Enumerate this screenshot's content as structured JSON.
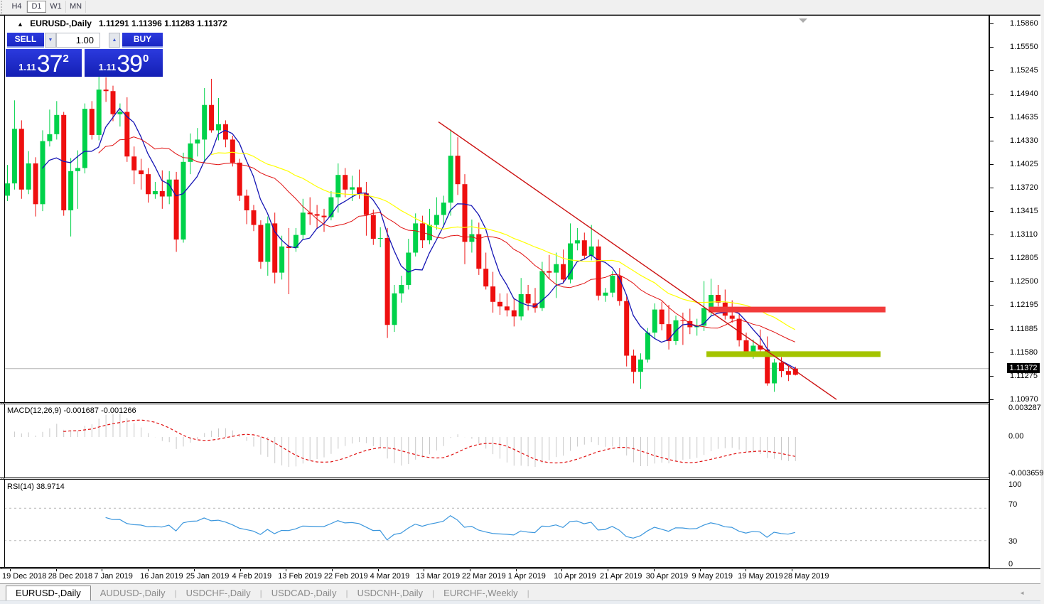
{
  "toolbar": {
    "timeframes": [
      {
        "label": "H4",
        "active": false
      },
      {
        "label": "D1",
        "active": true
      },
      {
        "label": "W1",
        "active": false
      },
      {
        "label": "MN",
        "active": false
      }
    ]
  },
  "chart_header": {
    "collapse_icon": "▲",
    "symbol_title": "EURUSD-,Daily",
    "ohlc_text": "1.11291 1.11396 1.11283 1.11372"
  },
  "trade_panel": {
    "sell_label": "SELL",
    "buy_label": "BUY",
    "volume": "1.00",
    "spin_down_icon": "▼",
    "spin_up_icon": "▲",
    "sell_price": {
      "small": "1.11",
      "big": "37",
      "sup": "2"
    },
    "buy_price": {
      "small": "1.11",
      "big": "39",
      "sup": "0"
    }
  },
  "price_axis": {
    "labels": [
      "1.15860",
      "1.15550",
      "1.15245",
      "1.14940",
      "1.14635",
      "1.14330",
      "1.14025",
      "1.13720",
      "1.13415",
      "1.13110",
      "1.12805",
      "1.12500",
      "1.12195",
      "1.11885",
      "1.11580",
      "1.11275",
      "1.10970"
    ],
    "current_price_tag": "1.11372"
  },
  "indicator_macd": {
    "label": "MACD(12,26,9) -0.001687 -0.001266",
    "value_main": "-0.001687",
    "value_signal": "-0.001266",
    "axis_labels": [
      "0.003287",
      "0.00",
      "-0.003659"
    ]
  },
  "indicator_rsi": {
    "label": "RSI(14) 38.9714",
    "value": "38.9714",
    "axis_labels": [
      "100",
      "70",
      "30",
      "0"
    ],
    "levels": [
      70,
      30
    ]
  },
  "time_axis": {
    "labels": [
      "19 Dec 2018",
      "28 Dec 2018",
      "7 Jan 2019",
      "16 Jan 2019",
      "25 Jan 2019",
      "4 Feb 2019",
      "13 Feb 2019",
      "22 Feb 2019",
      "4 Mar 2019",
      "13 Mar 2019",
      "22 Mar 2019",
      "1 Apr 2019",
      "10 Apr 2019",
      "21 Apr 2019",
      "30 Apr 2019",
      "9 May 2019",
      "19 May 2019",
      "28 May 2019"
    ]
  },
  "tabs": {
    "items": [
      {
        "label": "EURUSD-,Daily",
        "active": true
      },
      {
        "label": "AUDUSD-,Daily",
        "active": false
      },
      {
        "label": "USDCHF-,Daily",
        "active": false
      },
      {
        "label": "USDCAD-,Daily",
        "active": false
      },
      {
        "label": "USDCNH-,Daily",
        "active": false
      },
      {
        "label": "EURCHF-,Weekly",
        "active": false
      }
    ],
    "scroll_icon": "◄"
  },
  "colors": {
    "bull": "#00d24a",
    "bear": "#ee0f0f",
    "ma_fast": "#1414b4",
    "ma_mid": "#e01010",
    "ma_slow": "#ffff00",
    "macd_hist": "#c8c8c8",
    "macd_signal": "#e01010",
    "rsi_line": "#3a96dd",
    "resistance_band": "#f23b3b",
    "support_band": "#a4c400",
    "trendline": "#cc1111",
    "bid_line": "#b4b4b4"
  },
  "chart_data": {
    "type": "candlestick",
    "symbol": "EURUSD-",
    "timeframe": "Daily",
    "ylim": [
      1.1097,
      1.1586
    ],
    "x_tick_labels": [
      "19 Dec 2018",
      "28 Dec 2018",
      "7 Jan 2019",
      "16 Jan 2019",
      "25 Jan 2019",
      "4 Feb 2019",
      "13 Feb 2019",
      "22 Feb 2019",
      "4 Mar 2019",
      "13 Mar 2019",
      "22 Mar 2019",
      "1 Apr 2019",
      "10 Apr 2019",
      "21 Apr 2019",
      "30 Apr 2019",
      "9 May 2019",
      "19 May 2019",
      "28 May 2019"
    ],
    "moving_averages": [
      {
        "period": 6,
        "color_key": "ma_fast"
      },
      {
        "period": 14,
        "color_key": "ma_mid"
      },
      {
        "period": 30,
        "color_key": "ma_slow"
      }
    ],
    "bearish_override_indices": [
      112
    ],
    "ohlc": [
      [
        1.1362,
        1.1402,
        1.1355,
        1.1378
      ],
      [
        1.1378,
        1.1486,
        1.137,
        1.1449
      ],
      [
        1.1449,
        1.146,
        1.1358,
        1.137
      ],
      [
        1.137,
        1.142,
        1.1364,
        1.1404
      ],
      [
        1.1404,
        1.1412,
        1.1335,
        1.1351
      ],
      [
        1.1351,
        1.1447,
        1.1342,
        1.1433
      ],
      [
        1.1433,
        1.1474,
        1.1426,
        1.1442
      ],
      [
        1.1442,
        1.1485,
        1.1435,
        1.1467
      ],
      [
        1.1467,
        1.1471,
        1.1336,
        1.1343
      ],
      [
        1.1343,
        1.1411,
        1.1309,
        1.1394
      ],
      [
        1.1394,
        1.1421,
        1.1345,
        1.1398
      ],
      [
        1.1398,
        1.1482,
        1.1391,
        1.1475
      ],
      [
        1.1475,
        1.1485,
        1.1435,
        1.1441
      ],
      [
        1.1441,
        1.152,
        1.1434,
        1.15
      ],
      [
        1.15,
        1.1516,
        1.1484,
        1.1498
      ],
      [
        1.1498,
        1.1505,
        1.1459,
        1.1468
      ],
      [
        1.1468,
        1.1482,
        1.1452,
        1.1471
      ],
      [
        1.1471,
        1.149,
        1.1406,
        1.1413
      ],
      [
        1.1413,
        1.1426,
        1.1377,
        1.1395
      ],
      [
        1.1395,
        1.141,
        1.137,
        1.139
      ],
      [
        1.139,
        1.1398,
        1.1353,
        1.1364
      ],
      [
        1.1364,
        1.138,
        1.1358,
        1.1368
      ],
      [
        1.1368,
        1.1395,
        1.1345,
        1.1361
      ],
      [
        1.1361,
        1.1394,
        1.1351,
        1.1383
      ],
      [
        1.1383,
        1.1393,
        1.1289,
        1.1305
      ],
      [
        1.1305,
        1.1418,
        1.1301,
        1.1406
      ],
      [
        1.1406,
        1.1443,
        1.139,
        1.143
      ],
      [
        1.143,
        1.145,
        1.1413,
        1.1435
      ],
      [
        1.1435,
        1.1502,
        1.1405,
        1.148
      ],
      [
        1.148,
        1.1514,
        1.1444,
        1.1447
      ],
      [
        1.1447,
        1.1489,
        1.1434,
        1.1455
      ],
      [
        1.1455,
        1.146,
        1.1425,
        1.1435
      ],
      [
        1.1435,
        1.144,
        1.14,
        1.1405
      ],
      [
        1.1405,
        1.141,
        1.1355,
        1.1362
      ],
      [
        1.1362,
        1.137,
        1.1325,
        1.1343
      ],
      [
        1.1343,
        1.135,
        1.1316,
        1.1324
      ],
      [
        1.1324,
        1.133,
        1.1267,
        1.1276
      ],
      [
        1.1276,
        1.1335,
        1.1258,
        1.1326
      ],
      [
        1.1326,
        1.134,
        1.1248,
        1.1262
      ],
      [
        1.1262,
        1.131,
        1.1253,
        1.1296
      ],
      [
        1.1296,
        1.132,
        1.1234,
        1.1294
      ],
      [
        1.1294,
        1.132,
        1.1289,
        1.1311
      ],
      [
        1.1311,
        1.1358,
        1.1305,
        1.134
      ],
      [
        1.134,
        1.136,
        1.1324,
        1.1338
      ],
      [
        1.1338,
        1.135,
        1.132,
        1.1336
      ],
      [
        1.1336,
        1.1345,
        1.1315,
        1.1334
      ],
      [
        1.1334,
        1.1368,
        1.133,
        1.136
      ],
      [
        1.136,
        1.1404,
        1.134,
        1.1389
      ],
      [
        1.1389,
        1.1398,
        1.136,
        1.137
      ],
      [
        1.137,
        1.1388,
        1.1355,
        1.1373
      ],
      [
        1.1373,
        1.1396,
        1.1358,
        1.1365
      ],
      [
        1.1365,
        1.138,
        1.131,
        1.1337
      ],
      [
        1.1337,
        1.1344,
        1.1298,
        1.1306
      ],
      [
        1.1306,
        1.1321,
        1.1295,
        1.1307
      ],
      [
        1.1307,
        1.132,
        1.1177,
        1.1194
      ],
      [
        1.1194,
        1.1246,
        1.1185,
        1.1235
      ],
      [
        1.1235,
        1.1258,
        1.1223,
        1.1246
      ],
      [
        1.1246,
        1.1306,
        1.124,
        1.1288
      ],
      [
        1.1288,
        1.1339,
        1.1283,
        1.1326
      ],
      [
        1.1326,
        1.1336,
        1.1294,
        1.1304
      ],
      [
        1.1304,
        1.1345,
        1.1299,
        1.1324
      ],
      [
        1.1324,
        1.136,
        1.1318,
        1.1337
      ],
      [
        1.1337,
        1.1362,
        1.1322,
        1.1353
      ],
      [
        1.1353,
        1.1448,
        1.1336,
        1.1414
      ],
      [
        1.1414,
        1.1438,
        1.1363,
        1.1377
      ],
      [
        1.1377,
        1.139,
        1.1273,
        1.1302
      ],
      [
        1.1302,
        1.1331,
        1.1288,
        1.1312
      ],
      [
        1.1312,
        1.1327,
        1.1259,
        1.1267
      ],
      [
        1.1267,
        1.1288,
        1.124,
        1.1244
      ],
      [
        1.1244,
        1.1263,
        1.121,
        1.1224
      ],
      [
        1.1224,
        1.1235,
        1.1207,
        1.1218
      ],
      [
        1.1218,
        1.1235,
        1.1205,
        1.1213
      ],
      [
        1.1213,
        1.1228,
        1.1192,
        1.1205
      ],
      [
        1.1205,
        1.1255,
        1.12,
        1.1234
      ],
      [
        1.1234,
        1.1246,
        1.1213,
        1.1222
      ],
      [
        1.1222,
        1.1242,
        1.121,
        1.1216
      ],
      [
        1.1216,
        1.1276,
        1.1212,
        1.1264
      ],
      [
        1.1264,
        1.1285,
        1.1254,
        1.1262
      ],
      [
        1.1262,
        1.1288,
        1.1229,
        1.1273
      ],
      [
        1.1273,
        1.1292,
        1.1248,
        1.1253
      ],
      [
        1.1253,
        1.1326,
        1.1248,
        1.13
      ],
      [
        1.13,
        1.132,
        1.1291,
        1.1304
      ],
      [
        1.1304,
        1.1314,
        1.128,
        1.1284
      ],
      [
        1.1284,
        1.1324,
        1.1278,
        1.1296
      ],
      [
        1.1296,
        1.1305,
        1.1226,
        1.1232
      ],
      [
        1.1232,
        1.1242,
        1.1224,
        1.1236
      ],
      [
        1.1236,
        1.1264,
        1.123,
        1.1258
      ],
      [
        1.1258,
        1.1268,
        1.1219,
        1.1225
      ],
      [
        1.1225,
        1.1231,
        1.114,
        1.1154
      ],
      [
        1.1154,
        1.1162,
        1.1118,
        1.1133
      ],
      [
        1.1133,
        1.1157,
        1.1111,
        1.1149
      ],
      [
        1.1149,
        1.119,
        1.1145,
        1.1184
      ],
      [
        1.1184,
        1.1222,
        1.1176,
        1.1214
      ],
      [
        1.1214,
        1.1224,
        1.1187,
        1.1195
      ],
      [
        1.1195,
        1.122,
        1.1162,
        1.1173
      ],
      [
        1.1173,
        1.1206,
        1.1168,
        1.12
      ],
      [
        1.12,
        1.121,
        1.1168,
        1.1199
      ],
      [
        1.1199,
        1.1215,
        1.1182,
        1.1191
      ],
      [
        1.1191,
        1.1202,
        1.118,
        1.1193
      ],
      [
        1.1193,
        1.1251,
        1.1186,
        1.1216
      ],
      [
        1.1216,
        1.1254,
        1.1205,
        1.1233
      ],
      [
        1.1233,
        1.1246,
        1.1218,
        1.1223
      ],
      [
        1.1223,
        1.124,
        1.1201,
        1.1206
      ],
      [
        1.1206,
        1.1226,
        1.1197,
        1.1202
      ],
      [
        1.1202,
        1.1209,
        1.1166,
        1.1174
      ],
      [
        1.1174,
        1.1184,
        1.1155,
        1.1158
      ],
      [
        1.1158,
        1.1175,
        1.115,
        1.1167
      ],
      [
        1.1167,
        1.1188,
        1.1158,
        1.1162
      ],
      [
        1.1162,
        1.1179,
        1.1115,
        1.1118
      ],
      [
        1.1118,
        1.115,
        1.1107,
        1.1145
      ],
      [
        1.1145,
        1.1152,
        1.1126,
        1.1134
      ],
      [
        1.1134,
        1.1141,
        1.1121,
        1.1129
      ],
      [
        1.11291,
        1.11396,
        1.11283,
        1.11372
      ]
    ],
    "overlays": {
      "resistance_band": {
        "price": 1.1214,
        "x1": 997,
        "x2": 1246,
        "thickness_px": 8
      },
      "support_band": {
        "price": 1.1156,
        "x1": 994,
        "x2": 1239,
        "thickness_px": 8
      },
      "trendline": {
        "x1": 617,
        "price1": 1.1458,
        "x2": 1177,
        "price2": 1.1097
      },
      "bid_line_price": 1.11372
    }
  }
}
